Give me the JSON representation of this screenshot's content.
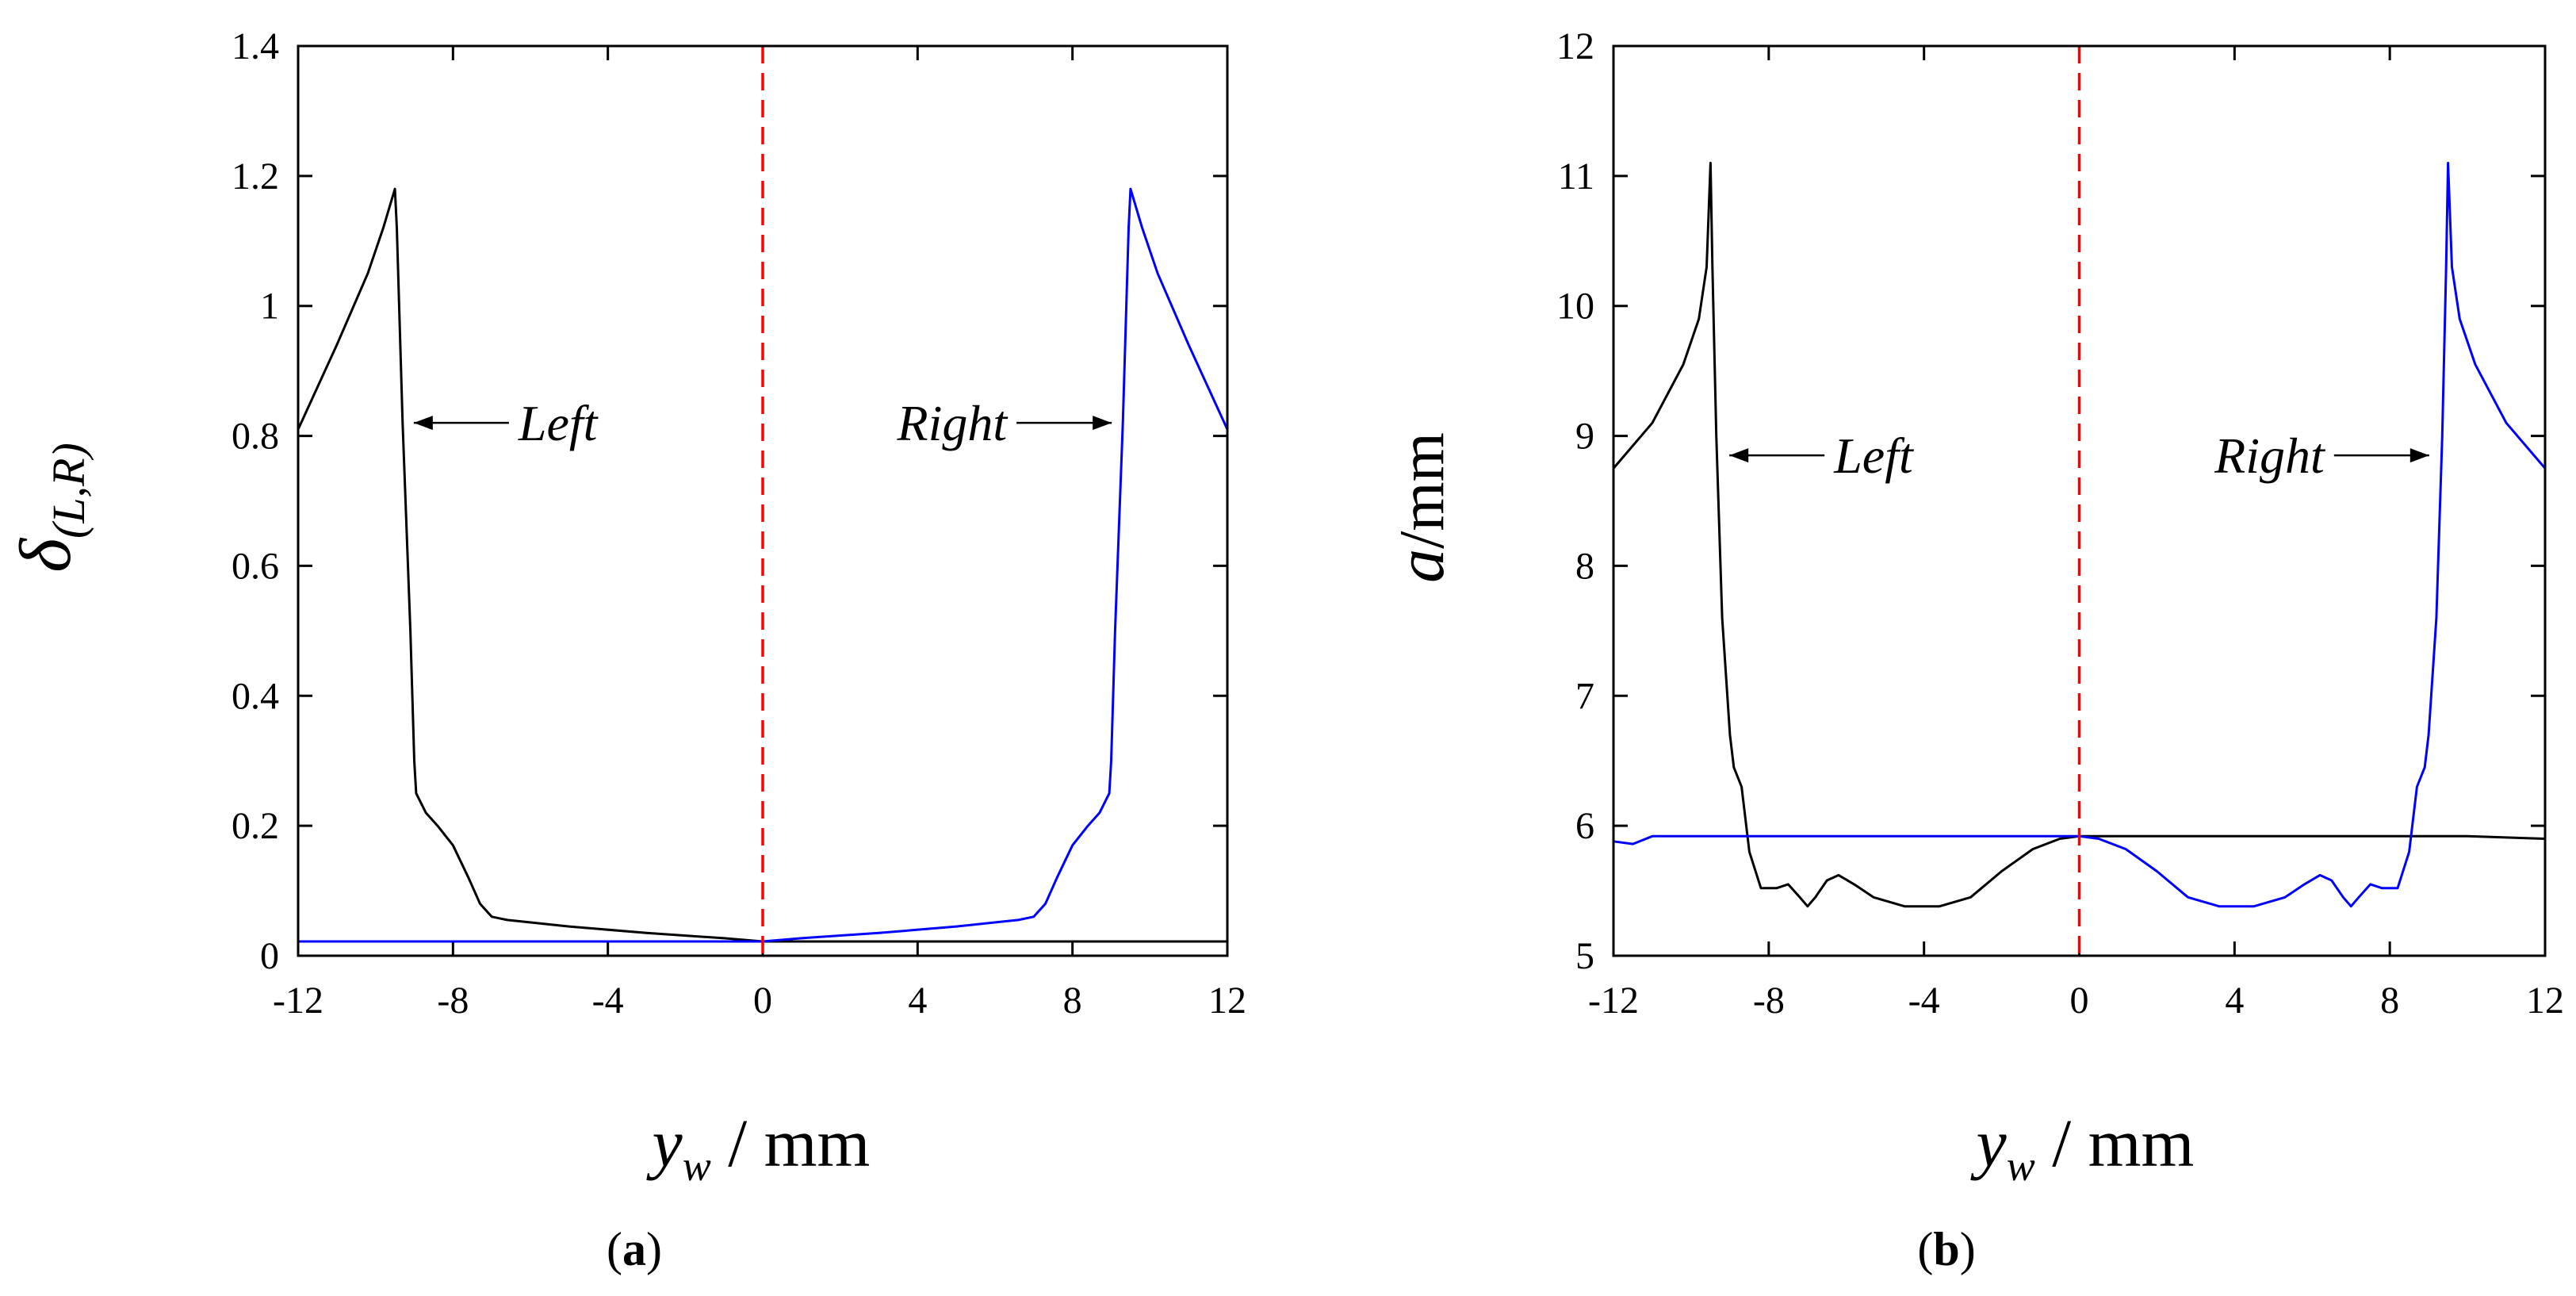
{
  "chart_data": [
    {
      "id": "a",
      "type": "line",
      "panel_label": "a",
      "xlabel": {
        "var": "y",
        "sub": "w",
        "unit": " / mm"
      },
      "ylabel": {
        "var": "δ",
        "sub": "(L,R)"
      },
      "xlim": [
        -12,
        12
      ],
      "ylim": [
        0,
        1.4
      ],
      "xticks": [
        -12,
        -8,
        -4,
        0,
        4,
        8,
        12
      ],
      "xtick_labels": [
        "-12",
        "-8",
        "-4",
        "0",
        "4",
        "8",
        "12"
      ],
      "yticks": [
        0,
        0.2,
        0.4,
        0.6,
        0.8,
        1,
        1.2,
        1.4
      ],
      "ytick_labels": [
        "0",
        "0.2",
        "0.4",
        "0.6",
        "0.8",
        "1",
        "1.2",
        "1.4"
      ],
      "vline": {
        "x": 0,
        "color": "#ff0000",
        "style": "dashed"
      },
      "series": [
        {
          "name": "Left",
          "color": "#000000",
          "x": [
            -12,
            -11,
            -10.2,
            -9.8,
            -9.6,
            -9.5,
            -9.45,
            -9.3,
            -9.1,
            -9.0,
            -8.95,
            -8.7,
            -8.4,
            -8.0,
            -7.6,
            -7.3,
            -7.0,
            -6.6,
            -5,
            -3,
            -1,
            0,
            2,
            4,
            6,
            8,
            10,
            12
          ],
          "y": [
            0.81,
            0.94,
            1.05,
            1.12,
            1.16,
            1.18,
            1.12,
            0.82,
            0.5,
            0.3,
            0.25,
            0.22,
            0.2,
            0.17,
            0.12,
            0.08,
            0.06,
            0.055,
            0.045,
            0.035,
            0.027,
            0.022,
            0.022,
            0.022,
            0.022,
            0.022,
            0.022,
            0.022
          ]
        },
        {
          "name": "Right",
          "color": "#0000ff",
          "x": [
            -12,
            -10,
            -8,
            -6,
            -4,
            -2,
            0,
            1,
            3,
            5,
            6.6,
            7.0,
            7.3,
            7.6,
            8.0,
            8.4,
            8.7,
            8.95,
            9.0,
            9.1,
            9.3,
            9.45,
            9.5,
            9.6,
            9.8,
            10.2,
            11,
            12
          ],
          "y": [
            0.022,
            0.022,
            0.022,
            0.022,
            0.022,
            0.022,
            0.022,
            0.027,
            0.035,
            0.045,
            0.055,
            0.06,
            0.08,
            0.12,
            0.17,
            0.2,
            0.22,
            0.25,
            0.3,
            0.5,
            0.82,
            1.12,
            1.18,
            1.16,
            1.12,
            1.05,
            0.94,
            0.81
          ]
        }
      ],
      "annotations": [
        {
          "text": "Left",
          "arrow_to_x": -9.3,
          "y": 0.82,
          "side": "right"
        },
        {
          "text": "Right",
          "arrow_to_x": 9.3,
          "y": 0.82,
          "side": "left"
        }
      ]
    },
    {
      "id": "b",
      "type": "line",
      "panel_label": "b",
      "xlabel": {
        "var": "y",
        "sub": "w",
        "unit": " / mm"
      },
      "ylabel": {
        "var": "a",
        "sub": "",
        "unit": "/mm"
      },
      "xlim": [
        -12,
        12
      ],
      "ylim": [
        5,
        12
      ],
      "xticks": [
        -12,
        -8,
        -4,
        0,
        4,
        8,
        12
      ],
      "xtick_labels": [
        "-12",
        "-8",
        "-4",
        "0",
        "4",
        "8",
        "12"
      ],
      "yticks": [
        5,
        6,
        7,
        8,
        9,
        10,
        11,
        12
      ],
      "ytick_labels": [
        "5",
        "6",
        "7",
        "8",
        "9",
        "10",
        "11",
        "12"
      ],
      "vline": {
        "x": 0,
        "color": "#ff0000",
        "style": "dashed"
      },
      "series": [
        {
          "name": "Left",
          "color": "#000000",
          "x": [
            -12,
            -11,
            -10.2,
            -9.8,
            -9.6,
            -9.5,
            -9.45,
            -9.35,
            -9.2,
            -9.0,
            -8.9,
            -8.7,
            -8.5,
            -8.2,
            -7.8,
            -7.5,
            -7.2,
            -7.0,
            -6.8,
            -6.5,
            -6.2,
            -5.8,
            -5.3,
            -4.5,
            -3.6,
            -2.8,
            -2.0,
            -1.2,
            -0.5,
            0,
            2,
            4,
            6,
            8,
            10,
            12
          ],
          "y": [
            8.75,
            9.1,
            9.55,
            9.9,
            10.3,
            11.1,
            10.3,
            9.0,
            7.6,
            6.7,
            6.45,
            6.3,
            5.8,
            5.52,
            5.52,
            5.55,
            5.45,
            5.38,
            5.45,
            5.58,
            5.62,
            5.55,
            5.45,
            5.38,
            5.38,
            5.45,
            5.65,
            5.82,
            5.9,
            5.92,
            5.92,
            5.92,
            5.92,
            5.92,
            5.92,
            5.9
          ]
        },
        {
          "name": "Right",
          "color": "#0000ff",
          "x": [
            -12,
            -11.5,
            -11,
            -10,
            -8,
            -6,
            -4,
            -2,
            -1,
            0,
            0.5,
            1.2,
            2.0,
            2.8,
            3.6,
            4.5,
            5.3,
            5.8,
            6.2,
            6.5,
            6.8,
            7.0,
            7.2,
            7.5,
            7.8,
            8.2,
            8.5,
            8.7,
            8.9,
            9.0,
            9.2,
            9.35,
            9.45,
            9.5,
            9.6,
            9.8,
            10.2,
            11,
            12
          ],
          "y": [
            5.88,
            5.86,
            5.92,
            5.92,
            5.92,
            5.92,
            5.92,
            5.92,
            5.92,
            5.92,
            5.9,
            5.82,
            5.65,
            5.45,
            5.38,
            5.38,
            5.45,
            5.55,
            5.62,
            5.58,
            5.45,
            5.38,
            5.45,
            5.55,
            5.52,
            5.52,
            5.8,
            6.3,
            6.45,
            6.7,
            7.6,
            9.0,
            10.3,
            11.1,
            10.3,
            9.9,
            9.55,
            9.1,
            8.75
          ]
        }
      ],
      "annotations": [
        {
          "text": "Left",
          "arrow_to_x": -9.3,
          "y": 8.85,
          "side": "right"
        },
        {
          "text": "Right",
          "arrow_to_x": 9.3,
          "y": 8.85,
          "side": "left"
        }
      ]
    }
  ]
}
